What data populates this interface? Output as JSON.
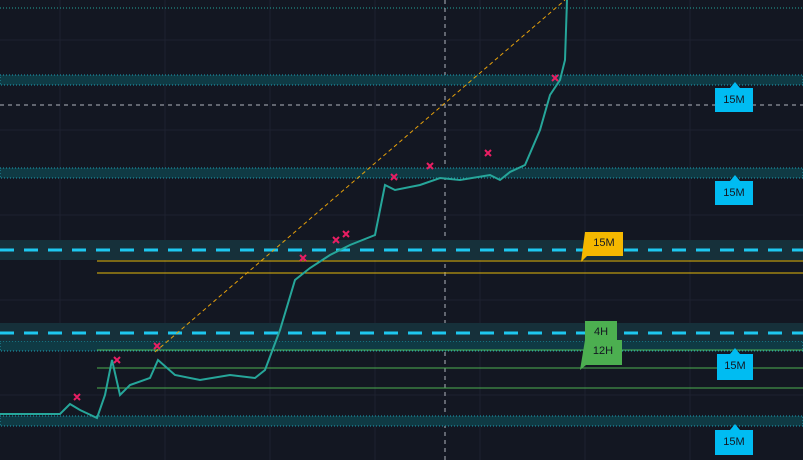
{
  "tags": [
    {
      "label": "15M"
    },
    {
      "label": "15M"
    },
    {
      "label": "15M"
    },
    {
      "label": "4H"
    },
    {
      "label": "12H"
    },
    {
      "label": "15M"
    },
    {
      "label": "15M"
    }
  ]
}
